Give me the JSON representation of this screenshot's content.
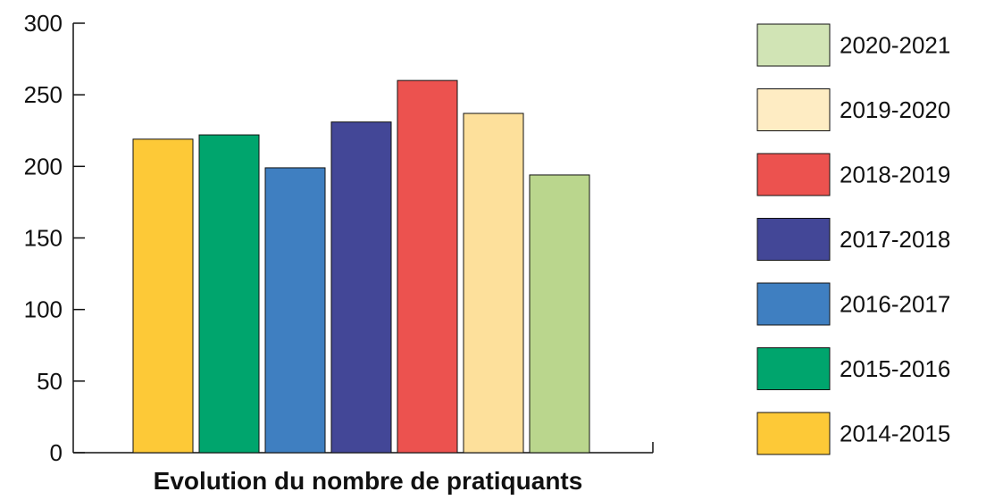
{
  "chart_data": {
    "type": "bar",
    "title": "",
    "xlabel": "Evolution du nombre de pratiquants",
    "ylabel": "",
    "ylim": [
      0,
      300
    ],
    "yticks": [
      0,
      50,
      100,
      150,
      200,
      250,
      300
    ],
    "grid": false,
    "legend_position": "right",
    "categories": [
      "2014-2015",
      "2015-2016",
      "2016-2017",
      "2017-2018",
      "2018-2019",
      "2019-2020",
      "2020-2021"
    ],
    "values": [
      219,
      222,
      199,
      231,
      260,
      237,
      194
    ],
    "colors": [
      "#fdc937",
      "#00a56d",
      "#3f7fc1",
      "#434797",
      "#ec524f",
      "#fde09b",
      "#bad68d"
    ],
    "legend": [
      {
        "label": "2020-2021",
        "color": "#d1e4b5"
      },
      {
        "label": "2019-2020",
        "color": "#feecc3"
      },
      {
        "label": "2018-2019",
        "color": "#ec524f"
      },
      {
        "label": "2017-2018",
        "color": "#434797"
      },
      {
        "label": "2016-2017",
        "color": "#3f7fc1"
      },
      {
        "label": "2015-2016",
        "color": "#00a56d"
      },
      {
        "label": "2014-2015",
        "color": "#fdc937"
      }
    ]
  }
}
